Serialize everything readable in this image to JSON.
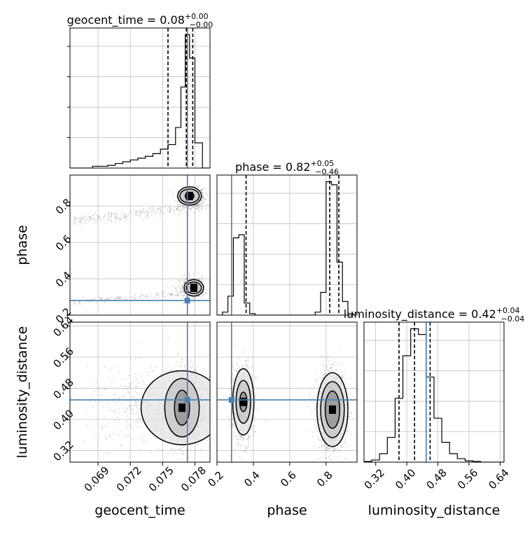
{
  "chart_data": {
    "type": "corner",
    "parameters": [
      "geocent_time",
      "phase",
      "luminosity_distance"
    ],
    "truths": {
      "geocent_time": 0.0773,
      "phase": 0.28,
      "luminosity_distance": 0.45
    },
    "panel_titles": [
      {
        "param": "geocent_time",
        "base": "geocent_time = 0.08",
        "sup": "+0.00",
        "sub": "−0.00"
      },
      {
        "param": "phase",
        "base": "phase = 0.82",
        "sup": "+0.05",
        "sub": "−0.46"
      },
      {
        "param": "luminosity_distance",
        "base": "luminosity_distance = 0.42",
        "sup": "+0.04",
        "sub": "−0.04"
      }
    ],
    "axis_labels": {
      "x": [
        "geocent_time",
        "phase",
        "luminosity_distance"
      ],
      "y": [
        "phase",
        "luminosity_distance"
      ]
    },
    "ranges": {
      "geocent_time": [
        0.0664,
        0.0794
      ],
      "phase": [
        0.2,
        0.97
      ],
      "luminosity_distance": [
        0.29,
        0.65
      ]
    },
    "ticks": {
      "geocent_time": [
        "0.069",
        "0.072",
        "0.075",
        "0.078"
      ],
      "phase": [
        "0.2",
        "0.4",
        "0.6",
        "0.8"
      ],
      "luminosity_distance": [
        "0.32",
        "0.40",
        "0.48",
        "0.56",
        "0.64"
      ]
    },
    "tick_values": {
      "geocent_time": [
        0.069,
        0.072,
        0.075,
        0.078
      ],
      "phase": [
        0.2,
        0.4,
        0.6,
        0.8
      ],
      "luminosity_distance": [
        0.32,
        0.4,
        0.48,
        0.56,
        0.64
      ]
    },
    "quantile_lines": {
      "geocent_time": [
        0.0755,
        0.0772,
        0.0778
      ],
      "phase": [
        0.36,
        0.82,
        0.87
      ],
      "luminosity_distance": [
        0.38,
        0.42,
        0.46
      ]
    },
    "histograms": {
      "geocent_time": {
        "edges": [
          0.0664,
          0.0671,
          0.0678,
          0.0685,
          0.0692,
          0.0699,
          0.0706,
          0.0713,
          0.072,
          0.0727,
          0.0734,
          0.0741,
          0.0748,
          0.0755,
          0.0762,
          0.0767,
          0.0771,
          0.0775,
          0.078,
          0.0787,
          0.0794
        ],
        "counts": [
          0,
          0,
          0,
          2,
          2,
          3,
          5,
          7,
          9,
          11,
          13,
          16,
          21,
          26,
          45,
          90,
          148,
          122,
          28,
          0
        ]
      },
      "phase": {
        "edges": [
          0.2,
          0.23,
          0.26,
          0.29,
          0.32,
          0.35,
          0.38,
          0.41,
          0.44,
          0.47,
          0.5,
          0.53,
          0.56,
          0.59,
          0.62,
          0.65,
          0.68,
          0.71,
          0.74,
          0.77,
          0.8,
          0.83,
          0.86,
          0.89,
          0.92,
          0.95
        ],
        "counts": [
          0,
          4,
          25,
          102,
          106,
          16,
          2,
          0,
          0,
          0,
          0,
          0,
          0,
          0,
          0,
          0,
          0,
          0,
          4,
          30,
          176,
          172,
          70,
          18,
          2
        ]
      },
      "luminosity_distance": {
        "edges": [
          0.29,
          0.31,
          0.33,
          0.35,
          0.37,
          0.39,
          0.41,
          0.43,
          0.45,
          0.47,
          0.49,
          0.51,
          0.53,
          0.55,
          0.57,
          0.59,
          0.61,
          0.63,
          0.65
        ],
        "counts": [
          1,
          3,
          12,
          35,
          90,
          150,
          188,
          180,
          120,
          62,
          28,
          12,
          5,
          2,
          1,
          0,
          0,
          0
        ]
      }
    },
    "scatter_clusters": {
      "geocent_time_phase": [
        {
          "x_mean": 0.0777,
          "x_sd": 0.0006,
          "y_mean": 0.85,
          "y_sd": 0.025,
          "n": 650
        },
        {
          "x_mean": 0.0745,
          "x_sd": 0.003,
          "y_mean": 0.77,
          "y_sd": 0.03,
          "n": 280,
          "trail": true,
          "trail_slope": 0.02
        },
        {
          "x_mean": 0.0777,
          "x_sd": 0.0006,
          "y_mean": 0.35,
          "y_sd": 0.03,
          "n": 480
        },
        {
          "x_mean": 0.0745,
          "x_sd": 0.003,
          "y_mean": 0.31,
          "y_sd": 0.015,
          "n": 180,
          "trail": true,
          "trail_slope": 0.015
        }
      ],
      "geocent_time_luminosity_distance": [
        {
          "x_mean": 0.0772,
          "x_sd": 0.0008,
          "y_mean": 0.43,
          "y_sd": 0.05,
          "n": 1200
        },
        {
          "x_mean": 0.074,
          "x_sd": 0.003,
          "y_mean": 0.43,
          "y_sd": 0.05,
          "n": 500
        }
      ],
      "phase_luminosity_distance": [
        {
          "x_mean": 0.34,
          "x_sd": 0.03,
          "y_mean": 0.44,
          "y_sd": 0.05,
          "n": 900
        },
        {
          "x_mean": 0.83,
          "x_sd": 0.04,
          "y_mean": 0.42,
          "y_sd": 0.05,
          "n": 1500
        }
      ]
    },
    "contours": {
      "geocent_time_phase": [
        {
          "cx": 0.0775,
          "cy": 0.855,
          "rx": [
            0.0011,
            0.0009,
            0.0004
          ],
          "ry": [
            0.05,
            0.038,
            0.02
          ]
        },
        {
          "cx": 0.0779,
          "cy": 0.35,
          "rx": [
            0.0009,
            0.0007,
            0.0003
          ],
          "ry": [
            0.045,
            0.032,
            0.015
          ]
        }
      ],
      "geocent_time_luminosity_distance": [
        {
          "cx": 0.0768,
          "cy": 0.43,
          "rx": [
            0.0038,
            0.0016,
            0.0007
          ],
          "ry": [
            0.095,
            0.075,
            0.045
          ]
        }
      ],
      "phase_luminosity_distance": [
        {
          "cx": 0.345,
          "cy": 0.445,
          "rx": [
            0.058,
            0.04,
            0.02
          ],
          "ry": [
            0.085,
            0.055,
            0.025
          ]
        },
        {
          "cx": 0.835,
          "cy": 0.425,
          "rx": [
            0.085,
            0.065,
            0.04
          ],
          "ry": [
            0.095,
            0.072,
            0.048
          ]
        }
      ]
    },
    "colors": {
      "truth": "#4682b4",
      "hist": "#000000",
      "grid": "#c0c0c0",
      "scatter": "#808080",
      "contour": "#000000"
    }
  }
}
